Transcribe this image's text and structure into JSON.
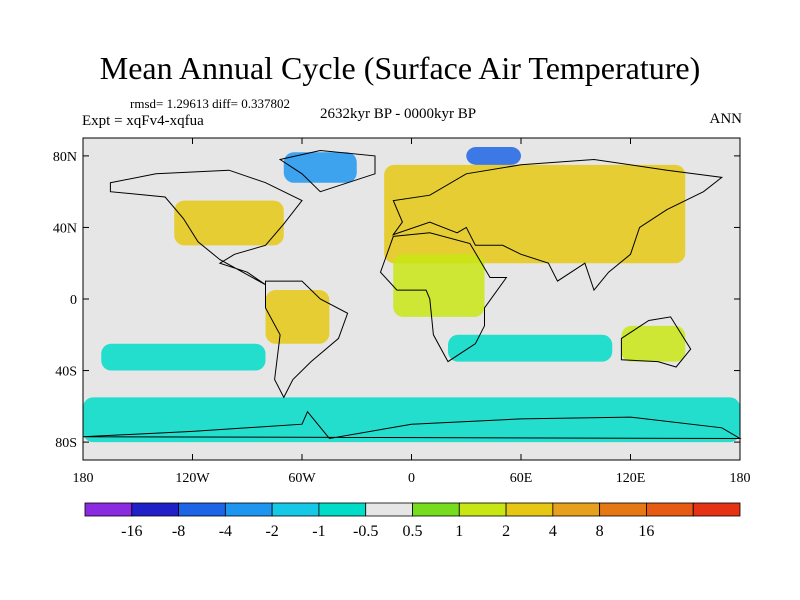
{
  "title": "Mean Annual Cycle (Surface Air Temperature)",
  "stats": "rmsd= 1.29613 diff= 0.337802",
  "experiment": "Expt = xqFv4-xqfua",
  "period": "2632kyr BP - 0000kyr BP",
  "season": "ANN",
  "colors": {
    "land_outline": "#000000",
    "neutral": "#e6e6e6"
  },
  "chart_data": {
    "type": "heatmap",
    "title": "Mean Annual Cycle (Surface Air Temperature)",
    "xlabel": "",
    "ylabel": "",
    "x_ticks": [
      "180",
      "120W",
      "60W",
      "0",
      "60E",
      "120E",
      "180"
    ],
    "x_tick_values": [
      -180,
      -120,
      -60,
      0,
      60,
      120,
      180
    ],
    "y_ticks": [
      "80N",
      "40N",
      "0",
      "40S",
      "80S"
    ],
    "y_tick_values": [
      80,
      40,
      0,
      -40,
      -80
    ],
    "xlim": [
      -180,
      180
    ],
    "ylim": [
      -90,
      90
    ],
    "colorbar": {
      "colors": [
        "#8a2be2",
        "#2020c8",
        "#1e64e6",
        "#1e96f0",
        "#14c8e6",
        "#00dcc8",
        "#e6e6e6",
        "#78dc1e",
        "#c8e614",
        "#e6c814",
        "#e6a01e",
        "#e67814",
        "#e65a14",
        "#e63214"
      ],
      "labels": [
        "-16",
        "-8",
        "-4",
        "-2",
        "-1",
        "-0.5",
        "0.5",
        "1",
        "2",
        "4",
        "8",
        "16"
      ]
    },
    "regions": [
      {
        "name": "eurasia-warm",
        "category": 9,
        "lon": [
          -15,
          150
        ],
        "lat": [
          20,
          75
        ]
      },
      {
        "name": "north-america-warm",
        "category": 9,
        "lon": [
          -130,
          -70
        ],
        "lat": [
          30,
          55
        ]
      },
      {
        "name": "south-america-warm",
        "category": 9,
        "lon": [
          -80,
          -45
        ],
        "lat": [
          -25,
          5
        ]
      },
      {
        "name": "arctic-cold",
        "category": 2,
        "lon": [
          30,
          60
        ],
        "lat": [
          75,
          85
        ]
      },
      {
        "name": "greenland-cold",
        "category": 3,
        "lon": [
          -70,
          -30
        ],
        "lat": [
          65,
          82
        ]
      },
      {
        "name": "southern-ocean-cool",
        "category": 5,
        "lon": [
          -180,
          180
        ],
        "lat": [
          -80,
          -55
        ]
      },
      {
        "name": "indian-ocean-cool",
        "category": 5,
        "lon": [
          20,
          110
        ],
        "lat": [
          -35,
          -20
        ]
      },
      {
        "name": "pacific-cool",
        "category": 5,
        "lon": [
          -170,
          -80
        ],
        "lat": [
          -40,
          -25
        ]
      },
      {
        "name": "africa-warm",
        "category": 8,
        "lon": [
          -10,
          40
        ],
        "lat": [
          -10,
          25
        ]
      },
      {
        "name": "australia-warm",
        "category": 8,
        "lon": [
          115,
          150
        ],
        "lat": [
          -35,
          -15
        ]
      }
    ]
  }
}
